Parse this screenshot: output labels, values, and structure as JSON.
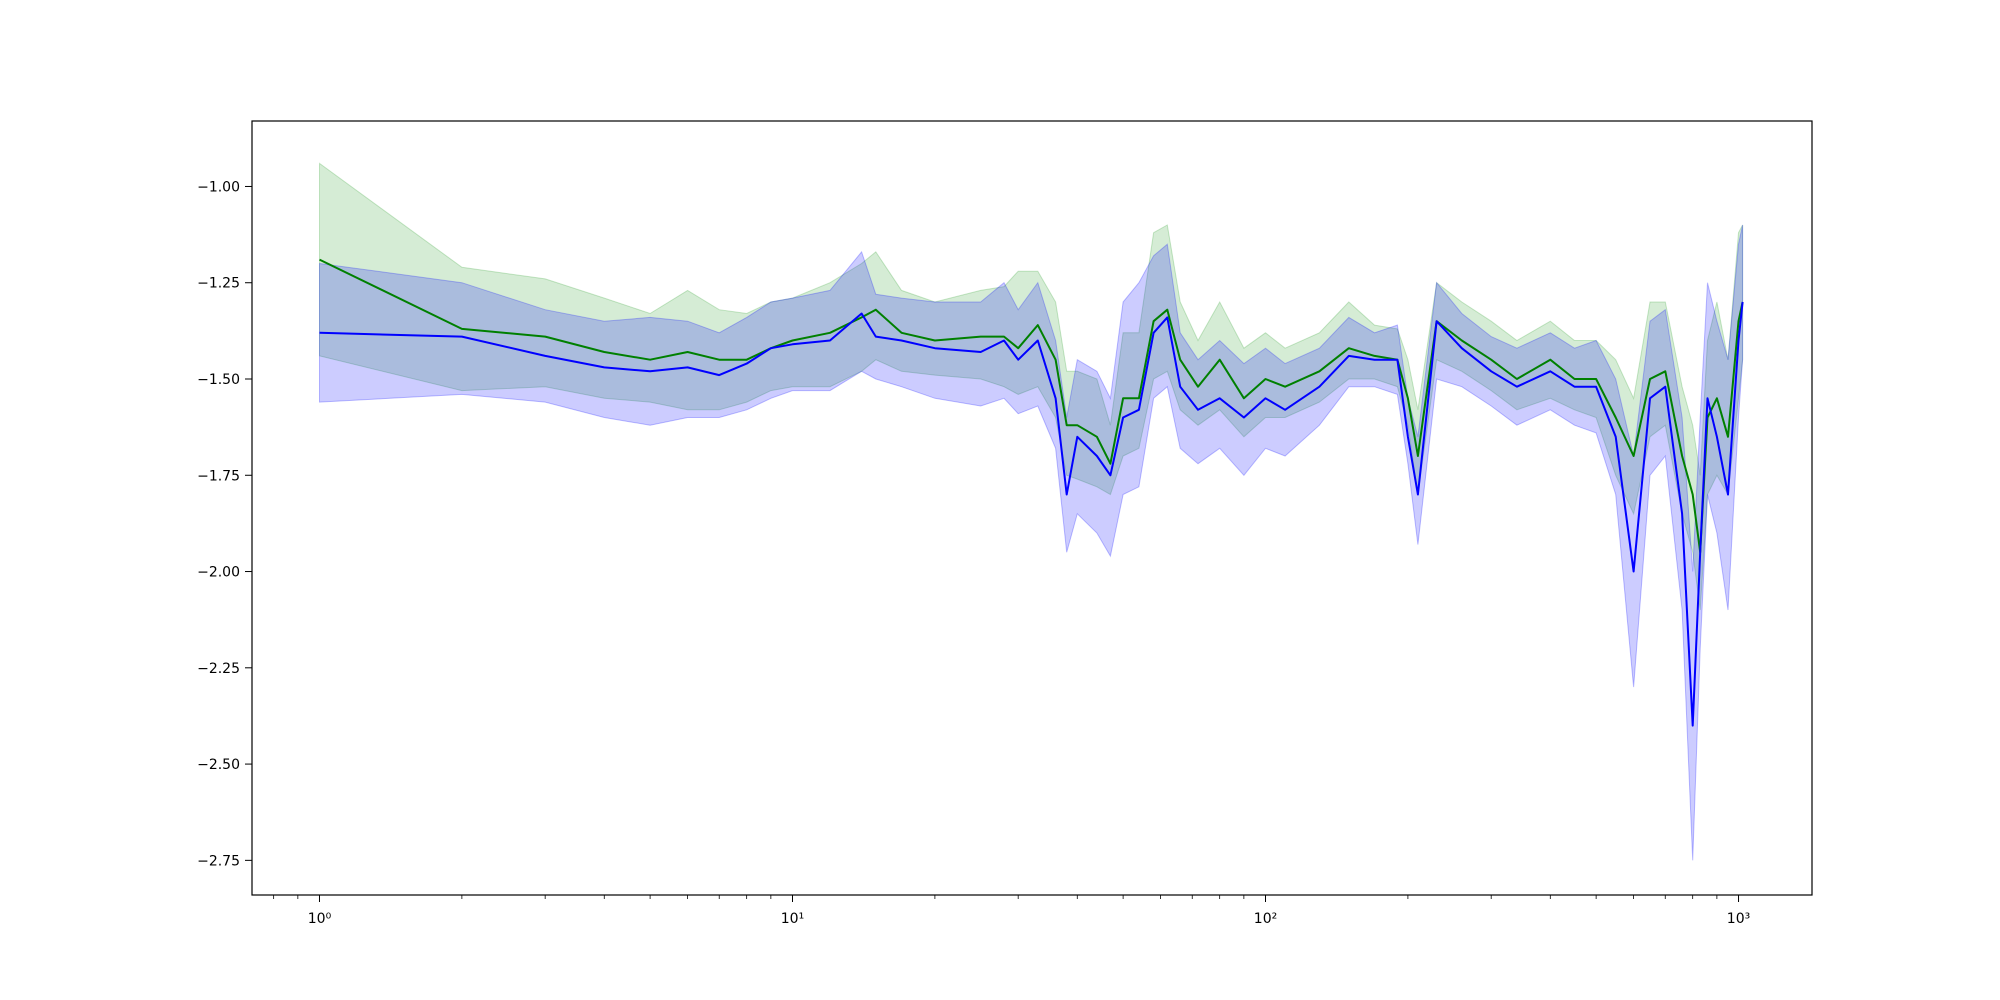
{
  "chart_data": {
    "type": "line",
    "title": "",
    "xlabel": "",
    "ylabel": "",
    "xscale": "log",
    "xlim": [
      0.72,
      1430
    ],
    "ylim": [
      -2.84,
      -0.83
    ],
    "grid": false,
    "legend": "none",
    "x_ticks": [
      {
        "value": 1,
        "label": "10⁰"
      },
      {
        "value": 10,
        "label": "10¹"
      },
      {
        "value": 100,
        "label": "10²"
      },
      {
        "value": 1000,
        "label": "10³"
      }
    ],
    "y_ticks": [
      {
        "value": -1.0,
        "label": "−1.00"
      },
      {
        "value": -1.25,
        "label": "−1.25"
      },
      {
        "value": -1.5,
        "label": "−1.50"
      },
      {
        "value": -1.75,
        "label": "−1.75"
      },
      {
        "value": -2.0,
        "label": "−2.00"
      },
      {
        "value": -2.25,
        "label": "−2.25"
      },
      {
        "value": -2.5,
        "label": "−2.50"
      },
      {
        "value": -2.75,
        "label": "−2.75"
      }
    ],
    "series": [
      {
        "color": "#008000",
        "band_color": "#2ca02c",
        "x": [
          1,
          2,
          3,
          4,
          5,
          6,
          7,
          8,
          9,
          10,
          12,
          14,
          15,
          17,
          20,
          25,
          28,
          30,
          33,
          36,
          38,
          40,
          44,
          47,
          50,
          54,
          58,
          62,
          66,
          72,
          80,
          90,
          100,
          110,
          130,
          150,
          170,
          190,
          200,
          210,
          230,
          260,
          300,
          340,
          400,
          450,
          500,
          550,
          600,
          650,
          700,
          760,
          800,
          830,
          860,
          900,
          950,
          1000,
          1020
        ],
        "y": [
          -1.19,
          -1.37,
          -1.39,
          -1.43,
          -1.45,
          -1.43,
          -1.45,
          -1.45,
          -1.42,
          -1.4,
          -1.38,
          -1.34,
          -1.32,
          -1.38,
          -1.4,
          -1.39,
          -1.39,
          -1.42,
          -1.36,
          -1.45,
          -1.62,
          -1.62,
          -1.65,
          -1.72,
          -1.55,
          -1.55,
          -1.35,
          -1.32,
          -1.45,
          -1.52,
          -1.45,
          -1.55,
          -1.5,
          -1.52,
          -1.48,
          -1.42,
          -1.44,
          -1.45,
          -1.55,
          -1.7,
          -1.35,
          -1.4,
          -1.45,
          -1.5,
          -1.45,
          -1.5,
          -1.5,
          -1.6,
          -1.7,
          -1.5,
          -1.48,
          -1.7,
          -1.8,
          -1.95,
          -1.6,
          -1.55,
          -1.65,
          -1.35,
          -1.3
        ],
        "lower": [
          -1.44,
          -1.53,
          -1.52,
          -1.55,
          -1.56,
          -1.58,
          -1.58,
          -1.56,
          -1.53,
          -1.52,
          -1.52,
          -1.48,
          -1.45,
          -1.48,
          -1.49,
          -1.5,
          -1.52,
          -1.54,
          -1.52,
          -1.6,
          -1.75,
          -1.76,
          -1.78,
          -1.8,
          -1.7,
          -1.68,
          -1.5,
          -1.48,
          -1.58,
          -1.62,
          -1.58,
          -1.65,
          -1.6,
          -1.6,
          -1.56,
          -1.5,
          -1.5,
          -1.52,
          -1.62,
          -1.8,
          -1.45,
          -1.48,
          -1.53,
          -1.58,
          -1.55,
          -1.58,
          -1.6,
          -1.75,
          -1.85,
          -1.65,
          -1.62,
          -1.85,
          -1.95,
          -2.1,
          -1.8,
          -1.75,
          -1.8,
          -1.55,
          -1.45
        ],
        "upper": [
          -0.94,
          -1.21,
          -1.24,
          -1.29,
          -1.33,
          -1.27,
          -1.32,
          -1.33,
          -1.3,
          -1.29,
          -1.25,
          -1.2,
          -1.17,
          -1.27,
          -1.3,
          -1.27,
          -1.26,
          -1.22,
          -1.22,
          -1.3,
          -1.48,
          -1.48,
          -1.5,
          -1.62,
          -1.38,
          -1.38,
          -1.12,
          -1.1,
          -1.3,
          -1.4,
          -1.3,
          -1.42,
          -1.38,
          -1.42,
          -1.38,
          -1.3,
          -1.36,
          -1.37,
          -1.45,
          -1.58,
          -1.25,
          -1.3,
          -1.35,
          -1.4,
          -1.35,
          -1.4,
          -1.4,
          -1.45,
          -1.55,
          -1.3,
          -1.3,
          -1.52,
          -1.62,
          -1.75,
          -1.4,
          -1.3,
          -1.45,
          -1.12,
          -1.1
        ]
      },
      {
        "color": "#0000ff",
        "band_color": "#0000ff",
        "x": [
          1,
          2,
          3,
          4,
          5,
          6,
          7,
          8,
          9,
          10,
          12,
          14,
          15,
          17,
          20,
          25,
          28,
          30,
          33,
          36,
          38,
          40,
          44,
          47,
          50,
          54,
          58,
          62,
          66,
          72,
          80,
          90,
          100,
          110,
          130,
          150,
          170,
          190,
          200,
          210,
          230,
          260,
          300,
          340,
          400,
          450,
          500,
          550,
          600,
          650,
          700,
          760,
          800,
          830,
          860,
          900,
          950,
          1000,
          1020
        ],
        "y": [
          -1.38,
          -1.39,
          -1.44,
          -1.47,
          -1.48,
          -1.47,
          -1.49,
          -1.46,
          -1.42,
          -1.41,
          -1.4,
          -1.33,
          -1.39,
          -1.4,
          -1.42,
          -1.43,
          -1.4,
          -1.45,
          -1.4,
          -1.55,
          -1.8,
          -1.65,
          -1.7,
          -1.75,
          -1.6,
          -1.58,
          -1.38,
          -1.34,
          -1.52,
          -1.58,
          -1.55,
          -1.6,
          -1.55,
          -1.58,
          -1.52,
          -1.44,
          -1.45,
          -1.45,
          -1.65,
          -1.8,
          -1.35,
          -1.42,
          -1.48,
          -1.52,
          -1.48,
          -1.52,
          -1.52,
          -1.65,
          -2.0,
          -1.55,
          -1.52,
          -1.85,
          -2.4,
          -1.95,
          -1.55,
          -1.65,
          -1.8,
          -1.4,
          -1.3
        ],
        "lower": [
          -1.56,
          -1.54,
          -1.56,
          -1.6,
          -1.62,
          -1.6,
          -1.6,
          -1.58,
          -1.55,
          -1.53,
          -1.53,
          -1.48,
          -1.5,
          -1.52,
          -1.55,
          -1.57,
          -1.55,
          -1.59,
          -1.57,
          -1.68,
          -1.95,
          -1.85,
          -1.9,
          -1.96,
          -1.8,
          -1.78,
          -1.55,
          -1.52,
          -1.68,
          -1.72,
          -1.68,
          -1.75,
          -1.68,
          -1.7,
          -1.62,
          -1.52,
          -1.52,
          -1.54,
          -1.72,
          -1.93,
          -1.5,
          -1.52,
          -1.57,
          -1.62,
          -1.58,
          -1.62,
          -1.64,
          -1.8,
          -2.3,
          -1.75,
          -1.7,
          -2.1,
          -2.75,
          -2.2,
          -1.8,
          -1.9,
          -2.1,
          -1.6,
          -1.45
        ],
        "upper": [
          -1.2,
          -1.25,
          -1.32,
          -1.35,
          -1.34,
          -1.35,
          -1.38,
          -1.34,
          -1.3,
          -1.29,
          -1.27,
          -1.17,
          -1.28,
          -1.29,
          -1.3,
          -1.3,
          -1.25,
          -1.32,
          -1.25,
          -1.4,
          -1.6,
          -1.45,
          -1.48,
          -1.55,
          -1.3,
          -1.25,
          -1.18,
          -1.15,
          -1.38,
          -1.45,
          -1.4,
          -1.46,
          -1.42,
          -1.46,
          -1.42,
          -1.34,
          -1.38,
          -1.36,
          -1.55,
          -1.65,
          -1.25,
          -1.33,
          -1.39,
          -1.42,
          -1.38,
          -1.42,
          -1.4,
          -1.5,
          -1.7,
          -1.35,
          -1.32,
          -1.6,
          -2.0,
          -1.6,
          -1.25,
          -1.35,
          -1.45,
          -1.15,
          -1.1
        ]
      }
    ]
  }
}
